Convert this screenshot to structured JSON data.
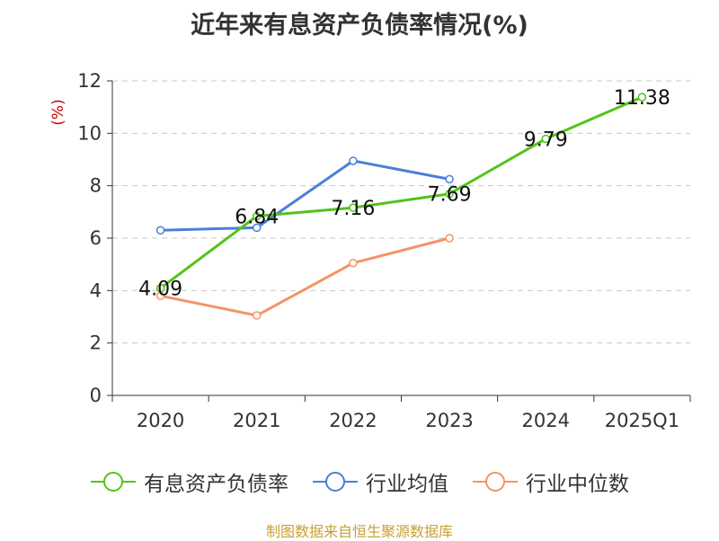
{
  "title": "近年来有息资产负债率情况(%)",
  "source": "制图数据来自恒生聚源数据库",
  "chart_data": {
    "type": "line",
    "title": "近年来有息资产负债率情况(%)",
    "xlabel": "",
    "ylabel": "(%)",
    "categories": [
      "2020",
      "2021",
      "2022",
      "2023",
      "2024",
      "2025Q1"
    ],
    "ylim": [
      0,
      12
    ],
    "yticks": [
      0,
      2,
      4,
      6,
      8,
      10,
      12
    ],
    "grid": true,
    "legend_position": "bottom",
    "series": [
      {
        "name": "有息资产负债率",
        "color": "#52c41a",
        "values": [
          4.09,
          6.84,
          7.16,
          7.69,
          9.79,
          11.38
        ],
        "labels": [
          "4.09",
          "6.84",
          "7.16",
          "7.69",
          "9.79",
          "11.38"
        ]
      },
      {
        "name": "行业均值",
        "color": "#4a7fd9",
        "values": [
          6.3,
          6.4,
          8.95,
          8.25,
          null,
          null
        ]
      },
      {
        "name": "行业中位数",
        "color": "#f59366",
        "values": [
          3.8,
          3.05,
          5.05,
          6.0,
          null,
          null
        ]
      }
    ]
  }
}
